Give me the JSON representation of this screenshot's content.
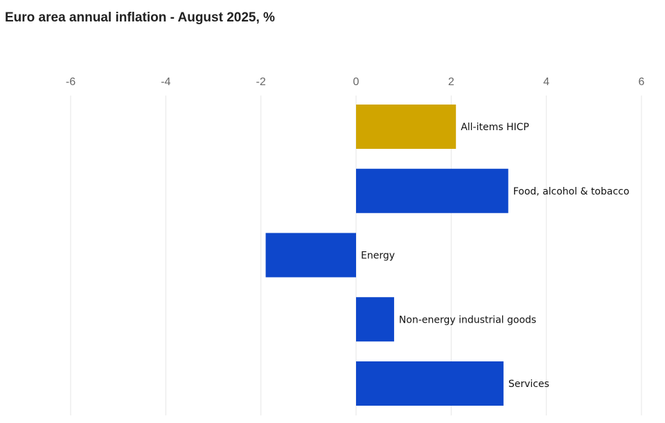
{
  "title": "Euro area annual inflation - August 2025, %",
  "colors": {
    "headline": "#D0A500",
    "component": "#0E47CB",
    "grid": "#e6e6e6",
    "tick_text": "#666666"
  },
  "chart_data": {
    "type": "bar",
    "orientation": "horizontal",
    "title": "Euro area annual inflation - August 2025, %",
    "xlabel": "",
    "ylabel": "",
    "xlim": [
      -6,
      6
    ],
    "x_ticks": [
      -6,
      -4,
      -2,
      0,
      2,
      4,
      6
    ],
    "x_axis_position": "top",
    "grid": true,
    "legend": "none",
    "categories": [
      "All-items HICP",
      "Food, alcohol & tobacco",
      "Energy",
      "Non-energy industrial goods",
      "Services"
    ],
    "values": [
      2.1,
      3.2,
      -1.9,
      0.8,
      3.1
    ],
    "bar_colors": [
      "#D0A500",
      "#0E47CB",
      "#0E47CB",
      "#0E47CB",
      "#0E47CB"
    ]
  }
}
